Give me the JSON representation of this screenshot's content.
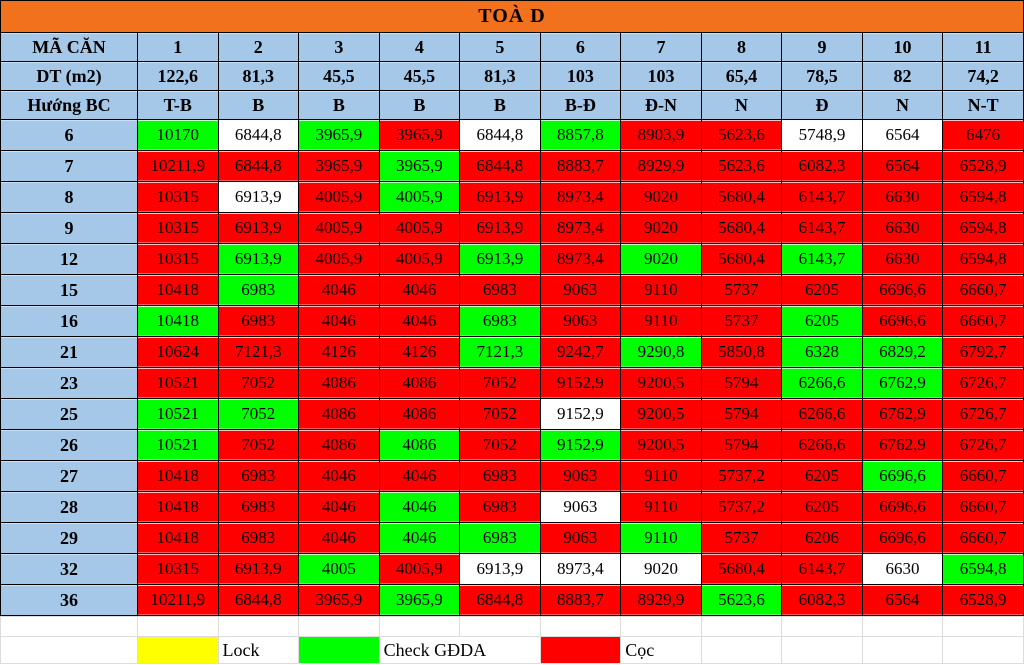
{
  "title": "TOÀ D",
  "colors": {
    "title_orange": "#F2711D",
    "header_blue": "#A5C8E8",
    "lock": "#FFFF00",
    "check_gdda": "#00FF00",
    "coc": "#FF0000",
    "available": "#FFFFFF",
    "grid_faint": "#DCDCDC"
  },
  "header": {
    "unit_label": "MÃ CĂN",
    "area_label": "DT (m2)",
    "direction_label": "Hướng BC",
    "units": [
      "1",
      "2",
      "3",
      "4",
      "5",
      "6",
      "7",
      "8",
      "9",
      "10",
      "11"
    ],
    "areas": [
      "122,6",
      "81,3",
      "45,5",
      "45,5",
      "81,3",
      "103",
      "103",
      "65,4",
      "78,5",
      "82",
      "74,2"
    ],
    "directions": [
      "T-B",
      "B",
      "B",
      "B",
      "B",
      "B-Đ",
      "Đ-N",
      "N",
      "Đ",
      "N",
      "N-T"
    ]
  },
  "status_legend_note": "G = Check GĐDA (green), R = Cọc (red), W = available (white), Y = Lock (yellow)",
  "rows": [
    {
      "floor": "6",
      "values": [
        "10170",
        "6844,8",
        "3965,9",
        "3965,9",
        "6844,8",
        "8857,8",
        "8903,9",
        "5623,6",
        "5748,9",
        "6564",
        "6476"
      ],
      "status": "GWGRWGRRWWR"
    },
    {
      "floor": "7",
      "values": [
        "10211,9",
        "6844,8",
        "3965,9",
        "3965,9",
        "6844,8",
        "8883,7",
        "8929,9",
        "5623,6",
        "6082,3",
        "6564",
        "6528,9"
      ],
      "status": "RRRGRRRRRRR"
    },
    {
      "floor": "8",
      "values": [
        "10315",
        "6913,9",
        "4005,9",
        "4005,9",
        "6913,9",
        "8973,4",
        "9020",
        "5680,4",
        "6143,7",
        "6630",
        "6594,8"
      ],
      "status": "RWRGRRRRRRR"
    },
    {
      "floor": "9",
      "values": [
        "10315",
        "6913,9",
        "4005,9",
        "4005,9",
        "6913,9",
        "8973,4",
        "9020",
        "5680,4",
        "6143,7",
        "6630",
        "6594,8"
      ],
      "status": "RRRRRRRRRRR"
    },
    {
      "floor": "12",
      "values": [
        "10315",
        "6913,9",
        "4005,9",
        "4005,9",
        "6913,9",
        "8973,4",
        "9020",
        "5680,4",
        "6143,7",
        "6630",
        "6594,8"
      ],
      "status": "RGRRGRGRGRR"
    },
    {
      "floor": "15",
      "values": [
        "10418",
        "6983",
        "4046",
        "4046",
        "6983",
        "9063",
        "9110",
        "5737",
        "6205",
        "6696,6",
        "6660,7"
      ],
      "status": "RGRRRRRRRRR"
    },
    {
      "floor": "16",
      "values": [
        "10418",
        "6983",
        "4046",
        "4046",
        "6983",
        "9063",
        "9110",
        "5737",
        "6205",
        "6696,6",
        "6660,7"
      ],
      "status": "GRRRGRRRGRR"
    },
    {
      "floor": "21",
      "values": [
        "10624",
        "7121,3",
        "4126",
        "4126",
        "7121,3",
        "9242,7",
        "9290,8",
        "5850,8",
        "6328",
        "6829,2",
        "6792,7"
      ],
      "status": "RRRRGRGRGGR"
    },
    {
      "floor": "23",
      "values": [
        "10521",
        "7052",
        "4086",
        "4086",
        "7052",
        "9152,9",
        "9200,5",
        "5794",
        "6266,6",
        "6762,9",
        "6726,7"
      ],
      "status": "RRRRRRRRGGR"
    },
    {
      "floor": "25",
      "values": [
        "10521",
        "7052",
        "4086",
        "4086",
        "7052",
        "9152,9",
        "9200,5",
        "5794",
        "6266,6",
        "6762,9",
        "6726,7"
      ],
      "status": "GGRRRWRRRRR"
    },
    {
      "floor": "26",
      "values": [
        "10521",
        "7052",
        "4086",
        "4086",
        "7052",
        "9152,9",
        "9200,5",
        "5794",
        "6266,6",
        "6762,9",
        "6726,7"
      ],
      "status": "GRRGRGRRRRR"
    },
    {
      "floor": "27",
      "values": [
        "10418",
        "6983",
        "4046",
        "4046",
        "6983",
        "9063",
        "9110",
        "5737,2",
        "6205",
        "6696,6",
        "6660,7"
      ],
      "status": "RRRRRRRRRGR"
    },
    {
      "floor": "28",
      "values": [
        "10418",
        "6983",
        "4046",
        "4046",
        "6983",
        "9063",
        "9110",
        "5737,2",
        "6205",
        "6696,6",
        "6660,7"
      ],
      "status": "RRRGRWRRRRR"
    },
    {
      "floor": "29",
      "values": [
        "10418",
        "6983",
        "4046",
        "4046",
        "6983",
        "9063",
        "9110",
        "5737",
        "6206",
        "6696,6",
        "6660,7"
      ],
      "status": "RRRGGRGRRRR"
    },
    {
      "floor": "32",
      "values": [
        "10315",
        "6913,9",
        "4005",
        "4005,9",
        "6913,9",
        "8973,4",
        "9020",
        "5680,4",
        "6143,7",
        "6630",
        "6594,8"
      ],
      "status": "RRGRWWWRRWG"
    },
    {
      "floor": "36",
      "values": [
        "10211,9",
        "6844,8",
        "3965,9",
        "3965,9",
        "6844,8",
        "8883,7",
        "8929,9",
        "5623,6",
        "6082,3",
        "6564",
        "6528,9"
      ],
      "status": "RRRGRRRGRRR"
    }
  ],
  "legend": {
    "items": [
      {
        "label": "Lock",
        "status": "lock"
      },
      {
        "label": "Check GĐDA",
        "status": "check_gdda"
      },
      {
        "label": "Cọc",
        "status": "coc"
      }
    ]
  }
}
